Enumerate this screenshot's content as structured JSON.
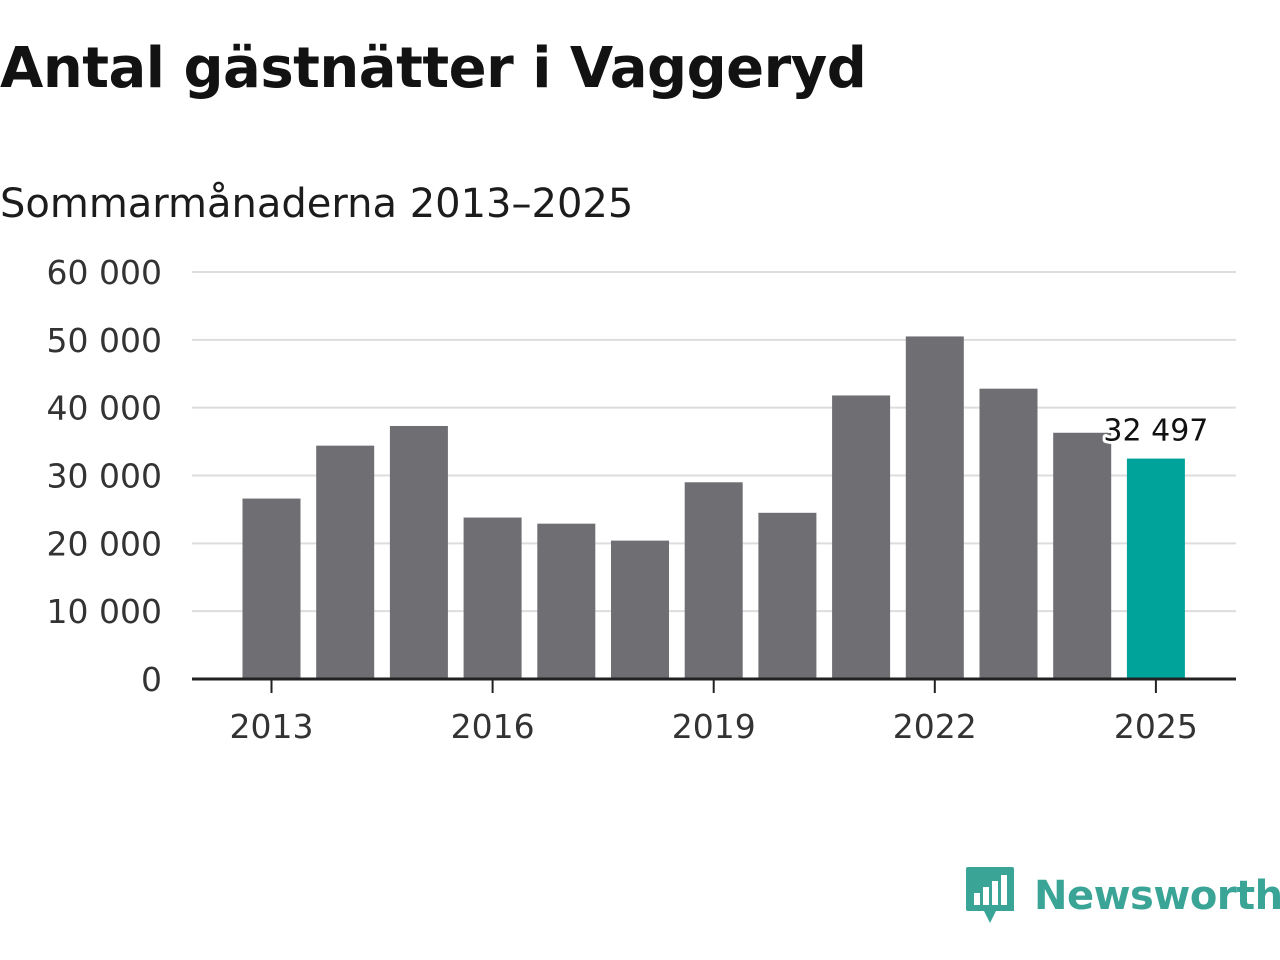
{
  "title": "Antal gästnätter i Vaggeryd",
  "subtitle": "Sommarmånaderna 2013–2025",
  "logo": {
    "text": "Newsworthy",
    "icon": "newsworthy-logo-icon",
    "color": "#3aa597"
  },
  "colors": {
    "bar": "#6e6e73",
    "highlight": "#00a39a",
    "grid": "#dddddd",
    "axis": "#222222"
  },
  "chart_data": {
    "type": "bar",
    "categories": [
      "2013",
      "2014",
      "2015",
      "2016",
      "2017",
      "2018",
      "2019",
      "2020",
      "2021",
      "2022",
      "2023",
      "2024",
      "2025"
    ],
    "values": [
      26600,
      34400,
      37300,
      23800,
      22900,
      20400,
      29000,
      24500,
      41800,
      50500,
      42800,
      36300,
      32497
    ],
    "highlight_index": 12,
    "data_label": {
      "index": 12,
      "text": "32 497"
    },
    "ylim": [
      0,
      60000
    ],
    "yticks": [
      {
        "value": 0,
        "label": "0"
      },
      {
        "value": 10000,
        "label": "10 000"
      },
      {
        "value": 20000,
        "label": "20 000"
      },
      {
        "value": 30000,
        "label": "30 000"
      },
      {
        "value": 40000,
        "label": "40 000"
      },
      {
        "value": 50000,
        "label": "50 000"
      },
      {
        "value": 60000,
        "label": "60 000"
      }
    ],
    "xticks": [
      "2013",
      "2016",
      "2019",
      "2022",
      "2025"
    ],
    "grid": true,
    "legend": false
  }
}
